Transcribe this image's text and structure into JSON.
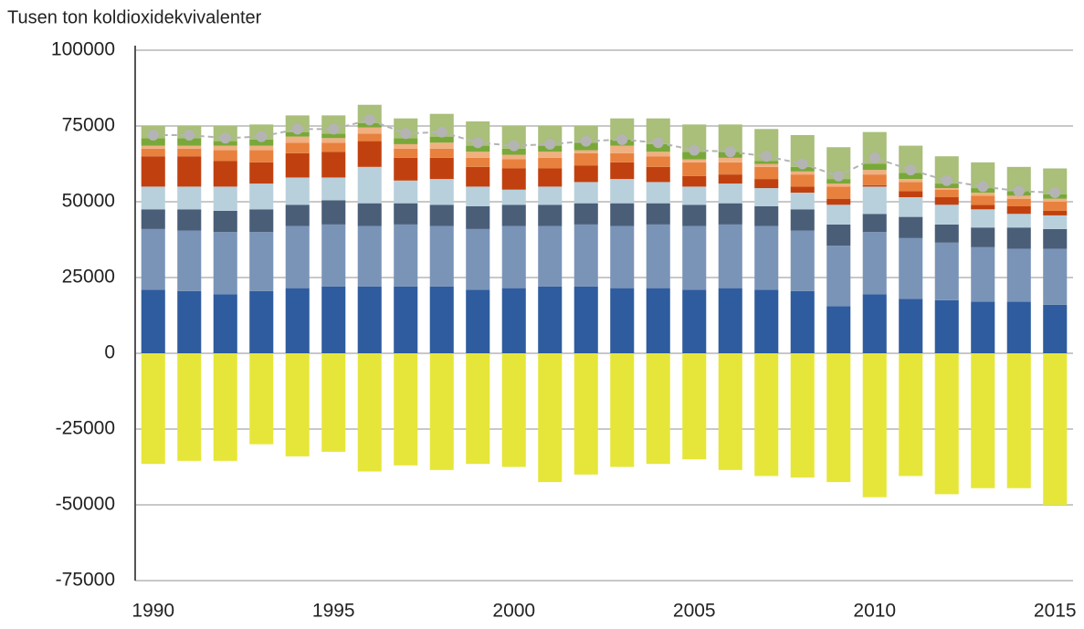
{
  "chart_data": {
    "type": "bar",
    "stacked": true,
    "title": "Tusen ton koldioxidekvivalenter",
    "x": [
      1990,
      1991,
      1992,
      1993,
      1994,
      1995,
      1996,
      1997,
      1998,
      1999,
      2000,
      2001,
      2002,
      2003,
      2004,
      2005,
      2006,
      2007,
      2008,
      2009,
      2010,
      2011,
      2012,
      2013,
      2014,
      2015
    ],
    "xlim": [
      1989.5,
      2015.5
    ],
    "xticks": [
      1990,
      1995,
      2000,
      2005,
      2010,
      2015
    ],
    "ylim": [
      -75000,
      100000
    ],
    "yticks": [
      -75000,
      -50000,
      -25000,
      0,
      25000,
      50000,
      75000,
      100000
    ],
    "grid": true,
    "series": [
      {
        "color": "#2e5c9e",
        "values": [
          21000,
          20500,
          19500,
          20500,
          21500,
          22000,
          22000,
          22000,
          22000,
          21000,
          21500,
          22000,
          22000,
          21500,
          21500,
          21000,
          21500,
          21000,
          20500,
          15500,
          19500,
          18000,
          17500,
          17000,
          17000,
          16000
        ]
      },
      {
        "color": "#7a94b8",
        "values": [
          20000,
          20000,
          20500,
          19500,
          20500,
          20500,
          20000,
          20500,
          20000,
          20000,
          20500,
          20000,
          20500,
          20500,
          21000,
          21000,
          21000,
          21000,
          20000,
          20000,
          20500,
          20000,
          19000,
          18000,
          17500,
          18500
        ]
      },
      {
        "color": "#4a5e78",
        "values": [
          6500,
          7000,
          7000,
          7500,
          7000,
          8000,
          7500,
          7000,
          7000,
          7500,
          7000,
          7000,
          7000,
          7500,
          7000,
          7000,
          7000,
          6500,
          7000,
          7000,
          6000,
          7000,
          6000,
          6500,
          7000,
          6500
        ]
      },
      {
        "color": "#b8d0dc",
        "values": [
          7500,
          7500,
          8000,
          8500,
          9000,
          7500,
          12000,
          7500,
          8500,
          6500,
          5000,
          6000,
          7000,
          8000,
          7000,
          6000,
          6500,
          6000,
          5500,
          6500,
          9000,
          6500,
          6500,
          6000,
          4500,
          4500
        ]
      },
      {
        "color": "#c0410f",
        "values": [
          10000,
          10000,
          8500,
          7000,
          8000,
          8500,
          8500,
          7500,
          7000,
          6500,
          7000,
          6000,
          5500,
          5500,
          5000,
          3500,
          3000,
          3000,
          2000,
          2000,
          500,
          2000,
          2500,
          1500,
          2500,
          1500
        ]
      },
      {
        "color": "#e8813e",
        "values": [
          2500,
          2500,
          3500,
          4000,
          3500,
          3000,
          2500,
          3000,
          3000,
          3000,
          3000,
          3500,
          4000,
          3000,
          3500,
          4500,
          4000,
          4000,
          4000,
          4000,
          3500,
          3000,
          2500,
          3000,
          2500,
          3000
        ]
      },
      {
        "color": "#f0b080",
        "values": [
          1000,
          1000,
          1500,
          1500,
          2000,
          1500,
          2000,
          1500,
          2000,
          2000,
          1500,
          2000,
          1000,
          2500,
          1500,
          1000,
          1500,
          1000,
          1000,
          1000,
          1500,
          1000,
          500,
          1000,
          1000,
          1000
        ]
      },
      {
        "color": "#79a83a",
        "values": [
          2500,
          2500,
          1500,
          2000,
          1500,
          1500,
          1500,
          2000,
          2000,
          2000,
          2000,
          2000,
          2500,
          2000,
          2500,
          2500,
          2000,
          1000,
          1500,
          1500,
          2000,
          2000,
          1500,
          1500,
          1500,
          1500
        ]
      },
      {
        "color": "#a9bf7a",
        "values": [
          4000,
          4000,
          5000,
          5000,
          5500,
          6000,
          6000,
          6500,
          7500,
          8000,
          7500,
          6500,
          5500,
          7000,
          8500,
          9000,
          9000,
          10500,
          10500,
          10500,
          10500,
          9000,
          9000,
          8500,
          8000,
          8500
        ]
      },
      {
        "color": "#e6e63a",
        "values": [
          -36500,
          -35500,
          -35500,
          -30000,
          -34000,
          -32500,
          -39000,
          -37000,
          -38500,
          -36500,
          -37500,
          -42500,
          -40000,
          -37500,
          -36500,
          -35000,
          -38500,
          -40500,
          -41000,
          -42500,
          -47500,
          -40500,
          -46500,
          -44500,
          -44500,
          -50000
        ]
      },
      {
        "type": "line",
        "color": "#b4b4b4",
        "values": [
          72000,
          72000,
          71000,
          71500,
          74000,
          74000,
          77000,
          72500,
          73000,
          69500,
          68500,
          69000,
          70000,
          70500,
          69500,
          67000,
          66500,
          65000,
          62500,
          58500,
          64500,
          60500,
          57000,
          55000,
          53500,
          53000
        ]
      }
    ]
  }
}
